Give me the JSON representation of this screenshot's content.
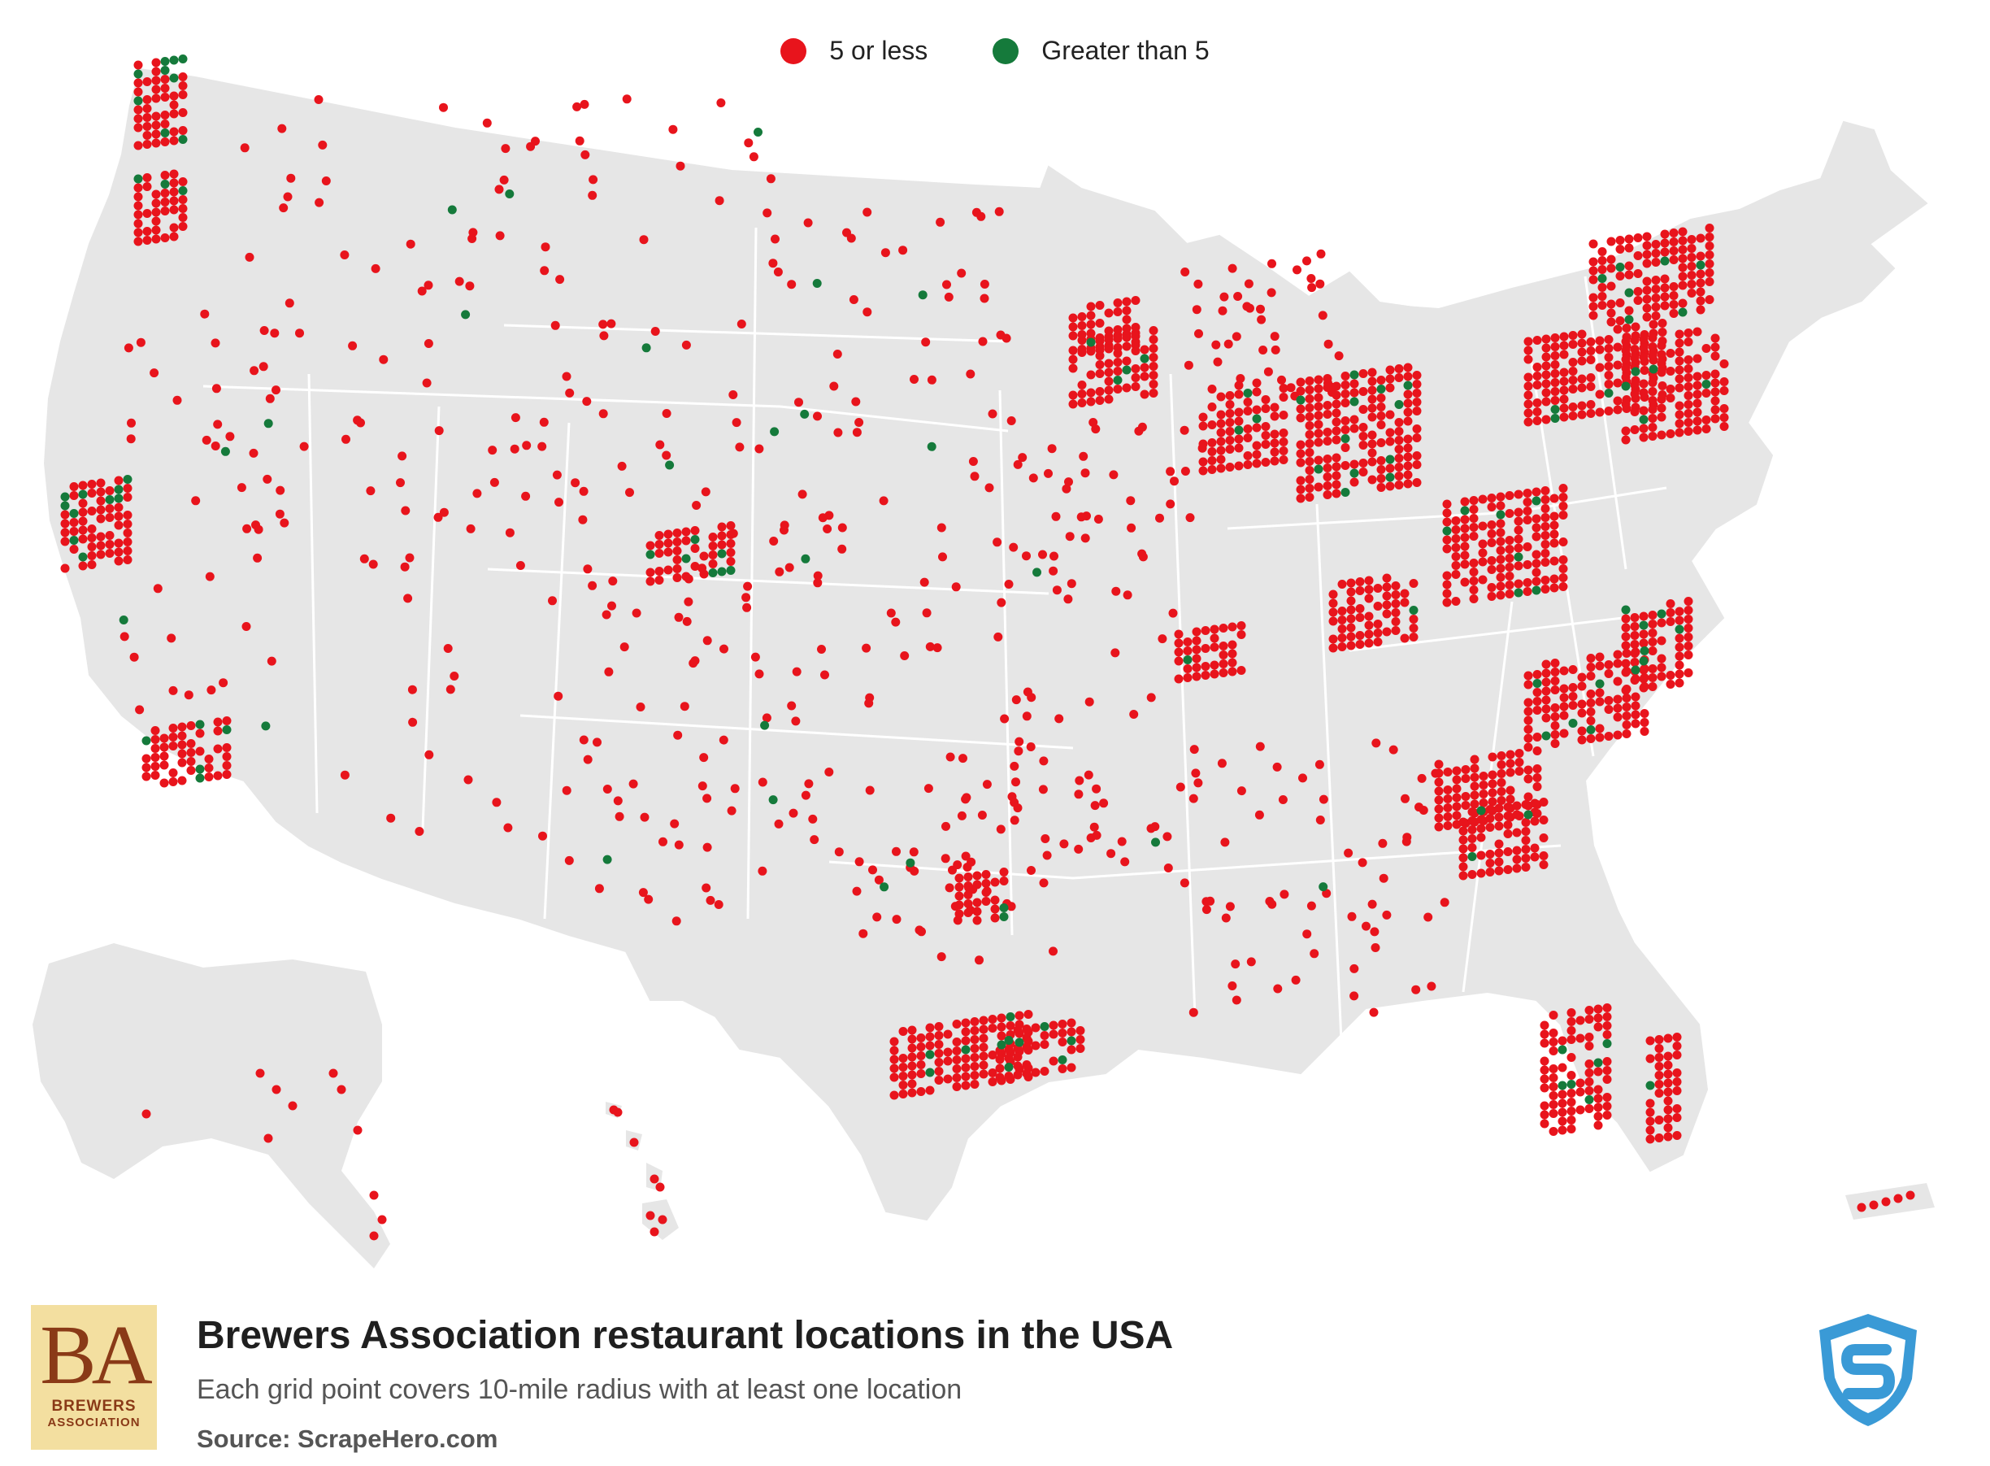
{
  "legend": [
    {
      "label": "5 or less",
      "color": "#e8141c"
    },
    {
      "label": "Greater than 5",
      "color": "#157a3b"
    }
  ],
  "footer": {
    "title": "Brewers Association restaurant locations in the USA",
    "subtitle": "Each grid point covers 10-mile radius with at least one location",
    "source": "Source: ScrapeHero.com",
    "brand_logo": {
      "name": "brewers-association-logo",
      "monogram": "BA",
      "line1": "BREWERS",
      "line2": "ASSOCIATION",
      "color": "#8a3a17",
      "background": "#f3dfa0"
    },
    "watermark_logo": {
      "name": "scrapehero-shield-logo",
      "color": "#3a9ad6"
    }
  },
  "colors": {
    "land": "#e6e6e6",
    "border": "#ffffff",
    "low": "#e8141c",
    "high": "#157a3b"
  }
}
